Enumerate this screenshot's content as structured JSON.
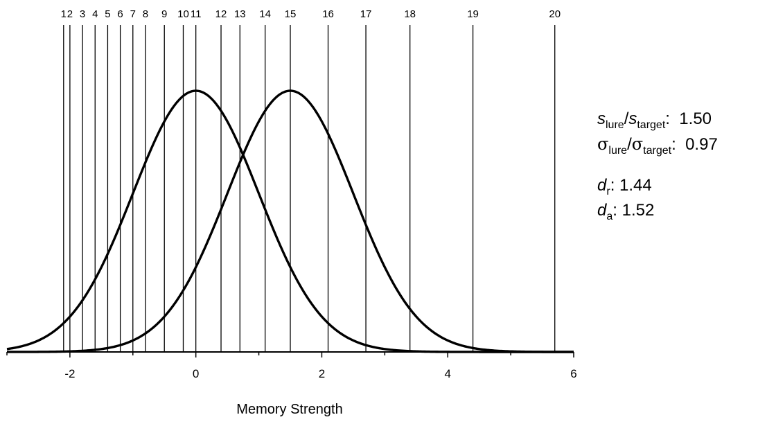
{
  "chart_data": {
    "type": "line",
    "xlabel": "Memory Strength",
    "ylabel": "",
    "title": "",
    "xlim": [
      -3,
      6
    ],
    "x_ticks": [
      -2,
      0,
      2,
      4,
      6
    ],
    "series": [
      {
        "mean": 0.0,
        "sd": 1.0
      },
      {
        "mean": 1.5,
        "sd": 1.0
      }
    ],
    "criteria": [
      {
        "label": "1",
        "x": -2.1
      },
      {
        "label": "2",
        "x": -2.0
      },
      {
        "label": "3",
        "x": -1.8
      },
      {
        "label": "4",
        "x": -1.6
      },
      {
        "label": "5",
        "x": -1.4
      },
      {
        "label": "6",
        "x": -1.2
      },
      {
        "label": "7",
        "x": -1.0
      },
      {
        "label": "8",
        "x": -0.8
      },
      {
        "label": "9",
        "x": -0.5
      },
      {
        "label": "10",
        "x": -0.2
      },
      {
        "label": "11",
        "x": 0.0
      },
      {
        "label": "12",
        "x": 0.4
      },
      {
        "label": "13",
        "x": 0.7
      },
      {
        "label": "14",
        "x": 1.1
      },
      {
        "label": "15",
        "x": 1.5
      },
      {
        "label": "16",
        "x": 2.1
      },
      {
        "label": "17",
        "x": 2.7
      },
      {
        "label": "18",
        "x": 3.4
      },
      {
        "label": "19",
        "x": 4.4
      },
      {
        "label": "20",
        "x": 5.7
      }
    ],
    "grid": false,
    "legend": "none"
  },
  "stats": {
    "ratio_s": {
      "num_var": "s",
      "num_sub": "lure",
      "den_var": "s",
      "den_sub": "target",
      "value": "1.50"
    },
    "ratio_sigma": {
      "num_var": "σ",
      "num_sub": "lure",
      "den_var": "σ",
      "den_sub": "target",
      "value": "0.97"
    },
    "d_r": {
      "var": "d",
      "sub": "r",
      "value": "1.44"
    },
    "d_a": {
      "var": "d",
      "sub": "a",
      "value": "1.52"
    }
  }
}
